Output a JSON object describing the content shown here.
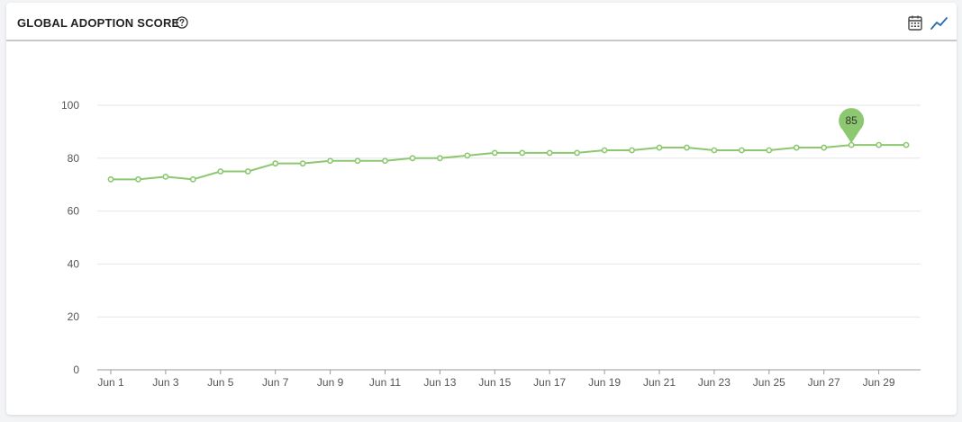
{
  "header": {
    "title": "GLOBAL ADOPTION SCORE",
    "help_icon": "help-circle-icon",
    "view_buttons": [
      "calendar-table-icon",
      "line-chart-icon"
    ]
  },
  "colors": {
    "line": "#8cc870",
    "grid": "#e6e6e6",
    "axis": "#999999",
    "accent": "#2b6cb0"
  },
  "chart_data": {
    "type": "line",
    "x": [
      "Jun 1",
      "Jun 2",
      "Jun 3",
      "Jun 4",
      "Jun 5",
      "Jun 6",
      "Jun 7",
      "Jun 8",
      "Jun 9",
      "Jun 10",
      "Jun 11",
      "Jun 12",
      "Jun 13",
      "Jun 14",
      "Jun 15",
      "Jun 16",
      "Jun 17",
      "Jun 18",
      "Jun 19",
      "Jun 20",
      "Jun 21",
      "Jun 22",
      "Jun 23",
      "Jun 24",
      "Jun 25",
      "Jun 26",
      "Jun 27",
      "Jun 28",
      "Jun 29",
      "Jun 30"
    ],
    "x_tick_labels": [
      "Jun 1",
      "Jun 3",
      "Jun 5",
      "Jun 7",
      "Jun 9",
      "Jun 11",
      "Jun 13",
      "Jun 15",
      "Jun 17",
      "Jun 19",
      "Jun 21",
      "Jun 23",
      "Jun 25",
      "Jun 27",
      "Jun 29"
    ],
    "series": [
      {
        "values": [
          72,
          72,
          73,
          72,
          75,
          75,
          78,
          78,
          79,
          79,
          79,
          80,
          80,
          81,
          82,
          82,
          82,
          82,
          83,
          83,
          84,
          84,
          83,
          83,
          83,
          84,
          84,
          85,
          85,
          85
        ]
      }
    ],
    "ylim": [
      0,
      100
    ],
    "y_ticks": [
      0,
      20,
      40,
      60,
      80,
      100
    ],
    "grid": true,
    "annotation": {
      "label": "85",
      "x": "Jun 28",
      "value": 85
    }
  }
}
